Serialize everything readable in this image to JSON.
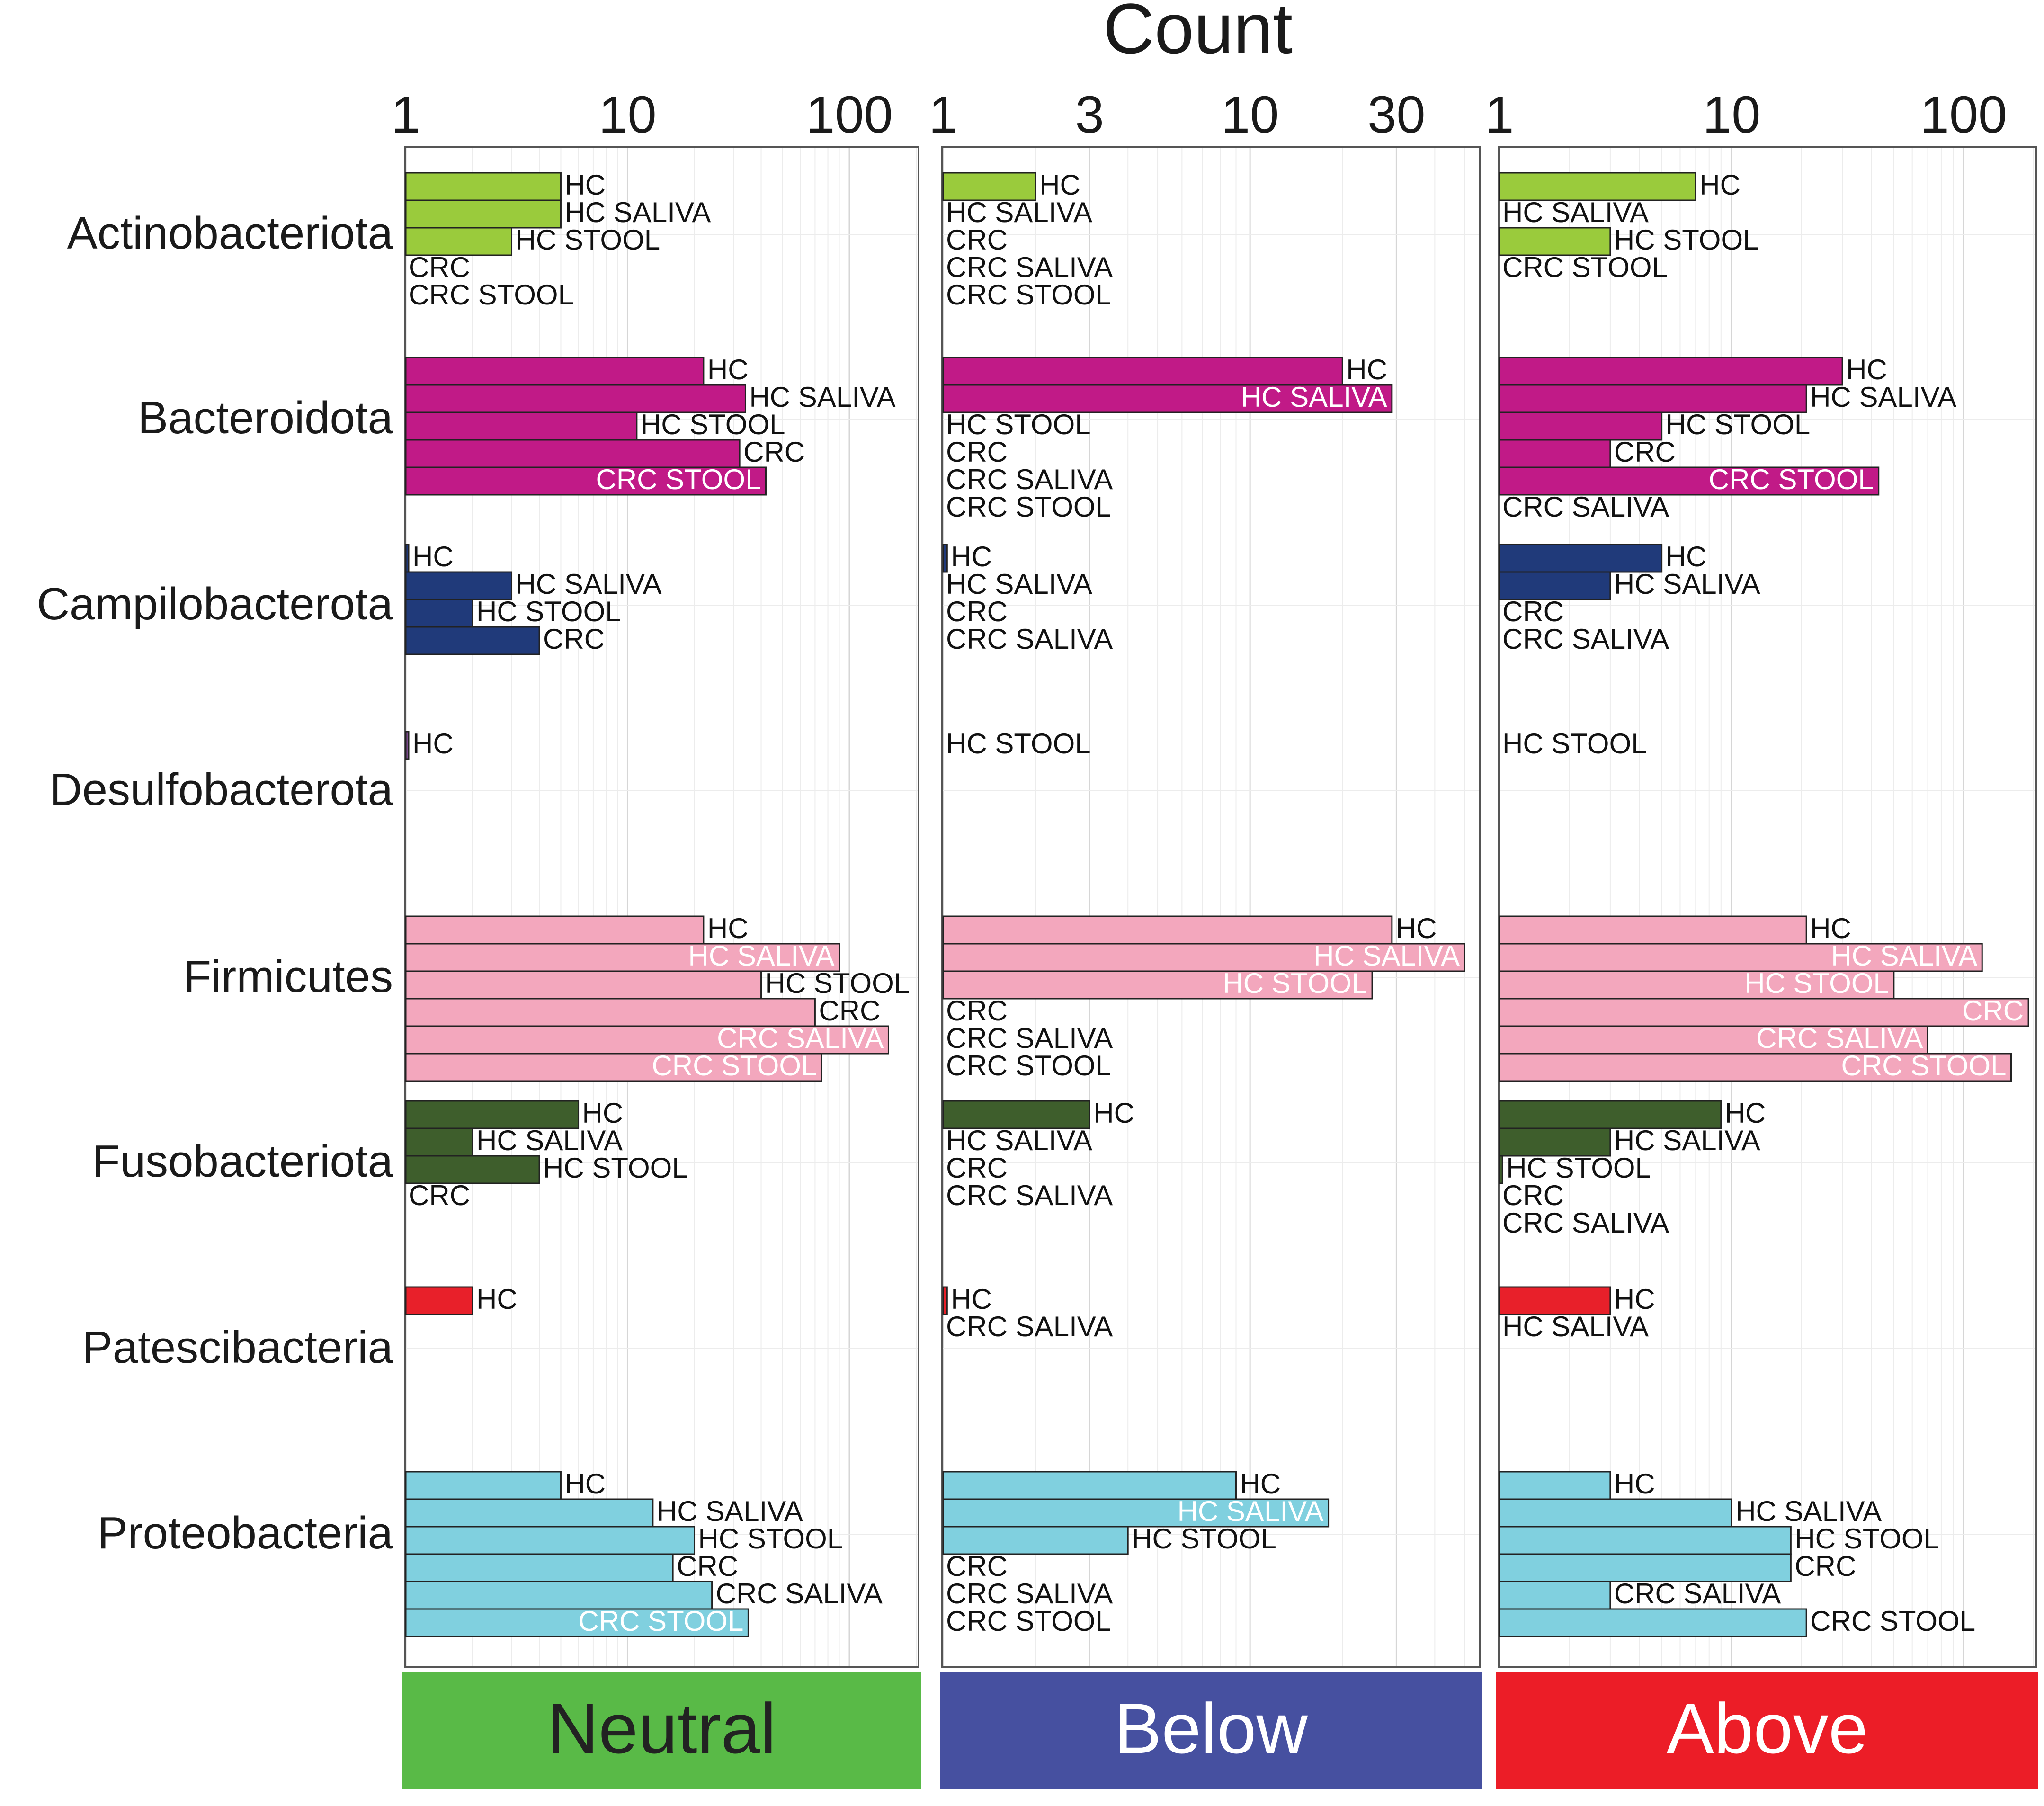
{
  "chart_data": {
    "type": "bar",
    "orientation": "horizontal",
    "x_scale": "log",
    "title": "Count",
    "colors": {
      "Actinobacteriota": "#9acb3c",
      "Bacteroidota": "#c11a87",
      "Campilobacterota": "#203a7a",
      "Desulfobacterota": "#7b4a8c",
      "Firmicutes": "#f3a7bd",
      "Fusobacteriota": "#3e5e2c",
      "Patescibacteria": "#e8202a",
      "Proteobacteria": "#80d0df"
    },
    "categories": [
      "Actinobacteriota",
      "Bacteroidota",
      "Campilobacterota",
      "Desulfobacterota",
      "Firmicutes",
      "Fusobacteriota",
      "Patescibacteria",
      "Proteobacteria"
    ],
    "panels": [
      {
        "name": "Neutral",
        "color": "#59ba47",
        "label_color": "#222222",
        "xlim": [
          1,
          200
        ],
        "ticks": [
          1,
          10,
          100
        ],
        "tick_labels": [
          "1",
          "10",
          "100"
        ],
        "groups": [
          {
            "phylum": "Actinobacteriota",
            "bars": [
              {
                "label": "HC",
                "value": 5
              },
              {
                "label": "HC SALIVA",
                "value": 5
              },
              {
                "label": "HC STOOL",
                "value": 3
              },
              {
                "label": "CRC",
                "value": 1
              },
              {
                "label": "CRC STOOL",
                "value": 1
              }
            ]
          },
          {
            "phylum": "Bacteroidota",
            "bars": [
              {
                "label": "HC",
                "value": 22
              },
              {
                "label": "HC SALIVA",
                "value": 34
              },
              {
                "label": "HC STOOL",
                "value": 11
              },
              {
                "label": "CRC",
                "value": 32
              },
              {
                "label": "CRC STOOL",
                "value": 42
              }
            ]
          },
          {
            "phylum": "Campilobacterota",
            "bars": [
              {
                "label": "HC",
                "value": 1.03
              },
              {
                "label": "HC SALIVA",
                "value": 3
              },
              {
                "label": "HC STOOL",
                "value": 2
              },
              {
                "label": "CRC",
                "value": 4
              }
            ]
          },
          {
            "phylum": "Desulfobacterota",
            "bars": [
              {
                "label": "HC",
                "value": 1.03
              }
            ]
          },
          {
            "phylum": "Firmicutes",
            "bars": [
              {
                "label": "HC",
                "value": 22
              },
              {
                "label": "HC SALIVA",
                "value": 90
              },
              {
                "label": "HC STOOL",
                "value": 40
              },
              {
                "label": "CRC",
                "value": 70
              },
              {
                "label": "CRC SALIVA",
                "value": 150
              },
              {
                "label": "CRC STOOL",
                "value": 75
              }
            ]
          },
          {
            "phylum": "Fusobacteriota",
            "bars": [
              {
                "label": "HC",
                "value": 6
              },
              {
                "label": "HC SALIVA",
                "value": 2
              },
              {
                "label": "HC STOOL",
                "value": 4
              },
              {
                "label": "CRC",
                "value": 1
              }
            ]
          },
          {
            "phylum": "Patescibacteria",
            "bars": [
              {
                "label": "HC",
                "value": 2
              }
            ]
          },
          {
            "phylum": "Proteobacteria",
            "bars": [
              {
                "label": "HC",
                "value": 5
              },
              {
                "label": "HC SALIVA",
                "value": 13
              },
              {
                "label": "HC STOOL",
                "value": 20
              },
              {
                "label": "CRC",
                "value": 16
              },
              {
                "label": "CRC SALIVA",
                "value": 24
              },
              {
                "label": "CRC STOOL",
                "value": 35
              }
            ]
          }
        ]
      },
      {
        "name": "Below",
        "color": "#4650a0",
        "label_color": "#ffffff",
        "xlim": [
          1,
          55
        ],
        "ticks": [
          1,
          3,
          10,
          30
        ],
        "tick_labels": [
          "1",
          "3",
          "10",
          "30"
        ],
        "groups": [
          {
            "phylum": "Actinobacteriota",
            "bars": [
              {
                "label": "HC",
                "value": 2
              },
              {
                "label": "HC SALIVA",
                "value": 1
              },
              {
                "label": "CRC",
                "value": 1
              },
              {
                "label": "CRC SALIVA",
                "value": 1
              },
              {
                "label": "CRC STOOL",
                "value": 1
              }
            ]
          },
          {
            "phylum": "Bacteroidota",
            "bars": [
              {
                "label": "HC",
                "value": 20
              },
              {
                "label": "HC SALIVA",
                "value": 29
              },
              {
                "label": "HC STOOL",
                "value": 1
              },
              {
                "label": "CRC",
                "value": 1
              },
              {
                "label": "CRC SALIVA",
                "value": 1
              },
              {
                "label": "CRC STOOL",
                "value": 1
              }
            ]
          },
          {
            "phylum": "Campilobacterota",
            "bars": [
              {
                "label": "HC",
                "value": 1.03
              },
              {
                "label": "HC SALIVA",
                "value": 1
              },
              {
                "label": "CRC",
                "value": 1
              },
              {
                "label": "CRC SALIVA",
                "value": 1
              }
            ]
          },
          {
            "phylum": "Desulfobacterota",
            "bars": [
              {
                "label": "HC STOOL",
                "value": 1
              }
            ]
          },
          {
            "phylum": "Firmicutes",
            "bars": [
              {
                "label": "HC",
                "value": 29
              },
              {
                "label": "HC SALIVA",
                "value": 50
              },
              {
                "label": "HC STOOL",
                "value": 25
              },
              {
                "label": "CRC",
                "value": 1
              },
              {
                "label": "CRC SALIVA",
                "value": 1
              },
              {
                "label": "CRC STOOL",
                "value": 1
              }
            ]
          },
          {
            "phylum": "Fusobacteriota",
            "bars": [
              {
                "label": "HC",
                "value": 3
              },
              {
                "label": "HC SALIVA",
                "value": 1
              },
              {
                "label": "CRC",
                "value": 1
              },
              {
                "label": "CRC SALIVA",
                "value": 1
              }
            ]
          },
          {
            "phylum": "Patescibacteria",
            "bars": [
              {
                "label": "HC",
                "value": 1.03
              },
              {
                "label": "CRC SALIVA",
                "value": 1
              }
            ]
          },
          {
            "phylum": "Proteobacteria",
            "bars": [
              {
                "label": "HC",
                "value": 9
              },
              {
                "label": "HC SALIVA",
                "value": 18
              },
              {
                "label": "HC STOOL",
                "value": 4
              },
              {
                "label": "CRC",
                "value": 1
              },
              {
                "label": "CRC SALIVA",
                "value": 1
              },
              {
                "label": "CRC STOOL",
                "value": 1
              }
            ]
          }
        ]
      },
      {
        "name": "Above",
        "color": "#ec1d27",
        "label_color": "#ffffff",
        "xlim": [
          1,
          200
        ],
        "ticks": [
          1,
          10,
          100
        ],
        "tick_labels": [
          "1",
          "10",
          "100"
        ],
        "groups": [
          {
            "phylum": "Actinobacteriota",
            "bars": [
              {
                "label": "HC",
                "value": 7
              },
              {
                "label": "HC SALIVA",
                "value": 1
              },
              {
                "label": "HC STOOL",
                "value": 3
              },
              {
                "label": "CRC STOOL",
                "value": 1
              }
            ]
          },
          {
            "phylum": "Bacteroidota",
            "bars": [
              {
                "label": "HC",
                "value": 30
              },
              {
                "label": "HC SALIVA",
                "value": 21
              },
              {
                "label": "HC STOOL",
                "value": 5
              },
              {
                "label": "CRC",
                "value": 3
              },
              {
                "label": "CRC STOOL",
                "value": 43
              },
              {
                "label": "CRC SALIVA",
                "value": 1
              }
            ]
          },
          {
            "phylum": "Campilobacterota",
            "bars": [
              {
                "label": "HC",
                "value": 5
              },
              {
                "label": "HC SALIVA",
                "value": 3
              },
              {
                "label": "CRC",
                "value": 1
              },
              {
                "label": "CRC SALIVA",
                "value": 1
              }
            ]
          },
          {
            "phylum": "Desulfobacterota",
            "bars": [
              {
                "label": "HC STOOL",
                "value": 1
              }
            ]
          },
          {
            "phylum": "Firmicutes",
            "bars": [
              {
                "label": "HC",
                "value": 21
              },
              {
                "label": "HC SALIVA",
                "value": 120
              },
              {
                "label": "HC STOOL",
                "value": 50
              },
              {
                "label": "CRC",
                "value": 190
              },
              {
                "label": "CRC SALIVA",
                "value": 70
              },
              {
                "label": "CRC STOOL",
                "value": 160
              }
            ]
          },
          {
            "phylum": "Fusobacteriota",
            "bars": [
              {
                "label": "HC",
                "value": 9
              },
              {
                "label": "HC SALIVA",
                "value": 3
              },
              {
                "label": "HC STOOL",
                "value": 1.03
              },
              {
                "label": "CRC",
                "value": 1
              },
              {
                "label": "CRC SALIVA",
                "value": 1
              }
            ]
          },
          {
            "phylum": "Patescibacteria",
            "bars": [
              {
                "label": "HC",
                "value": 3
              },
              {
                "label": "HC SALIVA",
                "value": 1
              }
            ]
          },
          {
            "phylum": "Proteobacteria",
            "bars": [
              {
                "label": "HC",
                "value": 3
              },
              {
                "label": "HC SALIVA",
                "value": 10
              },
              {
                "label": "HC STOOL",
                "value": 18
              },
              {
                "label": "CRC",
                "value": 18
              },
              {
                "label": "CRC SALIVA",
                "value": 3
              },
              {
                "label": "CRC STOOL",
                "value": 21
              }
            ]
          }
        ]
      }
    ]
  }
}
